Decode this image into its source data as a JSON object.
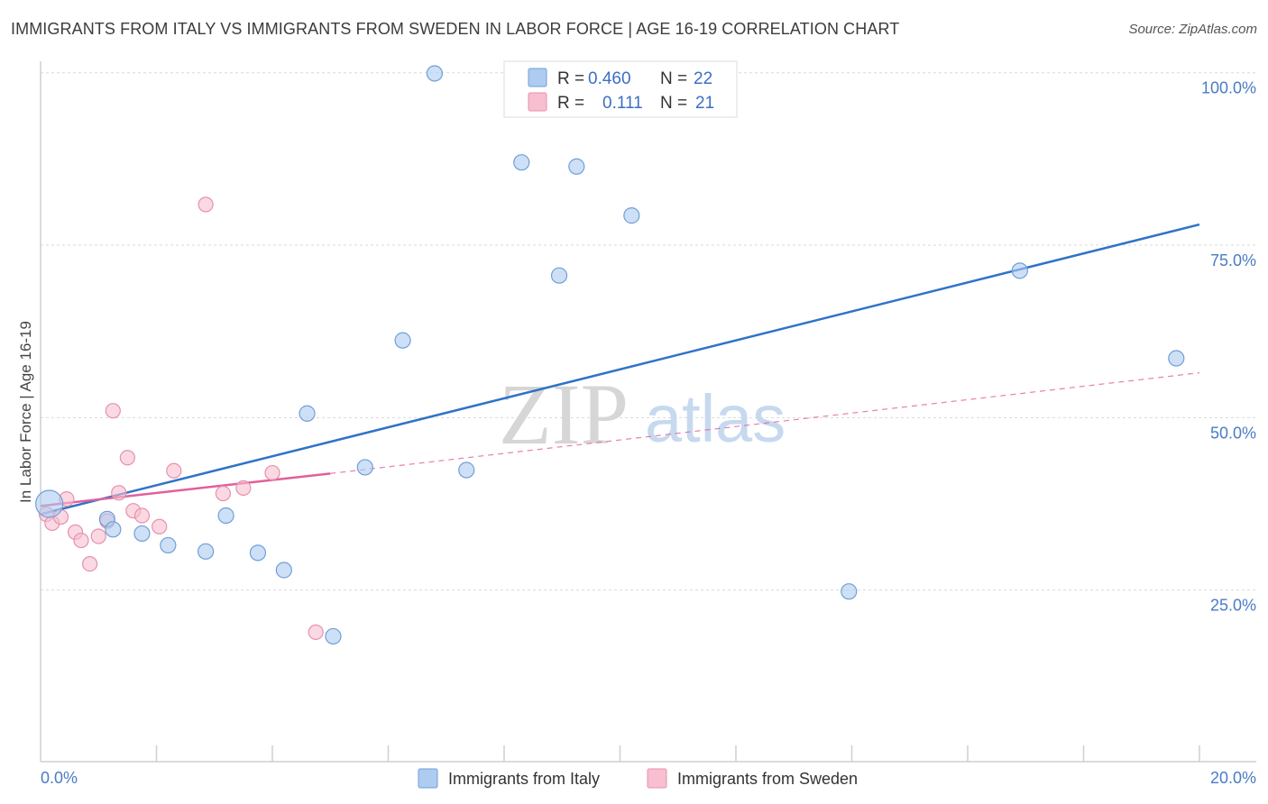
{
  "header": {
    "title": "IMMIGRANTS FROM ITALY VS IMMIGRANTS FROM SWEDEN IN LABOR FORCE | AGE 16-19 CORRELATION CHART",
    "source": "Source: ZipAtlas.com"
  },
  "watermark": {
    "zip": "ZIP",
    "atlas": "atlas"
  },
  "colors": {
    "italy_fill": "#aecbf0",
    "italy_stroke": "#6f9fd8",
    "italy_line": "#2f72c8",
    "sweden_fill": "#f7bfd0",
    "sweden_stroke": "#e890ad",
    "sweden_line": "#e0609a",
    "tick_text": "#4a7cc4",
    "grid": "#d9d9d9"
  },
  "legend": {
    "italy": {
      "r_label": "R =",
      "r_value": "0.460",
      "n_label": "N =",
      "n_value": "22"
    },
    "sweden": {
      "r_label": "R =",
      "r_value": "0.111",
      "n_label": "N =",
      "n_value": "21"
    }
  },
  "chart_data": {
    "type": "scatter",
    "title": "IMMIGRANTS FROM ITALY VS IMMIGRANTS FROM SWEDEN IN LABOR FORCE | AGE 16-19 CORRELATION CHART",
    "xlabel": "",
    "ylabel": "In Labor Force | Age 16-19",
    "xlim": [
      0,
      20
    ],
    "ylim": [
      0,
      102
    ],
    "x_tick_labels": [
      "0.0%",
      "20.0%"
    ],
    "y_ticks": [
      25,
      50,
      75,
      100
    ],
    "y_tick_labels": [
      "25.0%",
      "50.0%",
      "75.0%",
      "100.0%"
    ],
    "grid": true,
    "series": [
      {
        "name": "Immigrants from Italy",
        "points": [
          [
            0.15,
            37.5
          ],
          [
            1.15,
            35.3
          ],
          [
            1.25,
            33.8
          ],
          [
            1.75,
            33.2
          ],
          [
            2.2,
            31.5
          ],
          [
            2.85,
            30.6
          ],
          [
            3.2,
            35.8
          ],
          [
            3.75,
            30.4
          ],
          [
            4.2,
            27.9
          ],
          [
            4.6,
            50.6
          ],
          [
            5.05,
            18.3
          ],
          [
            5.6,
            42.8
          ],
          [
            6.25,
            61.2
          ],
          [
            6.8,
            99.9
          ],
          [
            7.35,
            42.4
          ],
          [
            8.3,
            87.0
          ],
          [
            8.95,
            70.6
          ],
          [
            9.25,
            86.4
          ],
          [
            10.2,
            79.3
          ],
          [
            13.95,
            24.8
          ],
          [
            16.9,
            71.3
          ],
          [
            19.6,
            58.6
          ]
        ],
        "trend": {
          "x": [
            0,
            20
          ],
          "y": [
            36.0,
            78.0
          ]
        }
      },
      {
        "name": "Immigrants from Sweden",
        "points": [
          [
            0.1,
            36.0
          ],
          [
            0.2,
            34.7
          ],
          [
            0.35,
            35.6
          ],
          [
            0.45,
            38.2
          ],
          [
            0.6,
            33.4
          ],
          [
            0.7,
            32.2
          ],
          [
            0.85,
            28.8
          ],
          [
            1.0,
            32.8
          ],
          [
            1.15,
            35.0
          ],
          [
            1.25,
            51.0
          ],
          [
            1.35,
            39.1
          ],
          [
            1.5,
            44.2
          ],
          [
            1.6,
            36.5
          ],
          [
            1.75,
            35.8
          ],
          [
            2.05,
            34.2
          ],
          [
            2.3,
            42.3
          ],
          [
            2.85,
            80.9
          ],
          [
            3.15,
            39.0
          ],
          [
            3.5,
            39.8
          ],
          [
            4.0,
            42.0
          ],
          [
            4.75,
            18.9
          ]
        ],
        "trend": {
          "x": [
            0,
            5
          ],
          "y": [
            37.2,
            41.9
          ]
        },
        "trend_extended": {
          "x": [
            5,
            20
          ],
          "y": [
            41.9,
            56.5
          ]
        }
      }
    ]
  },
  "bottom_legend": {
    "italy_label": "Immigrants from Italy",
    "sweden_label": "Immigrants from Sweden"
  }
}
